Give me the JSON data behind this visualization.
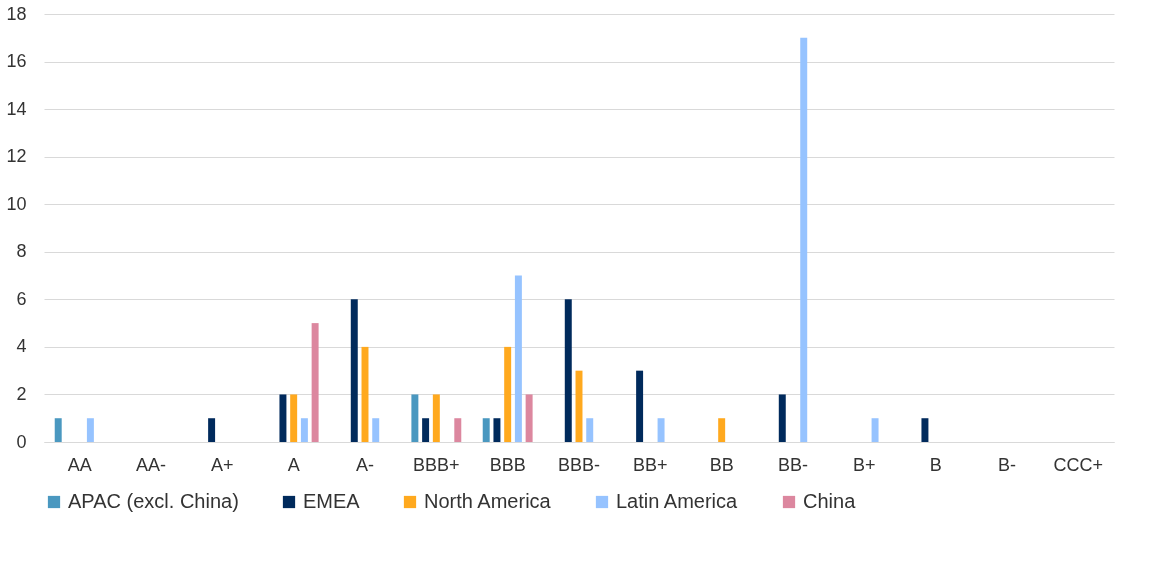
{
  "chart_data": {
    "type": "bar",
    "categories": [
      "AA",
      "AA-",
      "A+",
      "A",
      "A-",
      "BBB+",
      "BBB",
      "BBB-",
      "BB+",
      "BB",
      "BB-",
      "B+",
      "B",
      "B-",
      "CCC+"
    ],
    "series": [
      {
        "name": "APAC (excl. China)",
        "color": "#4a98c0",
        "values": [
          1,
          0,
          0,
          0,
          0,
          2,
          1,
          0,
          0,
          0,
          0,
          0,
          0,
          0,
          0
        ]
      },
      {
        "name": "EMEA",
        "color": "#002a5c",
        "values": [
          0,
          0,
          1,
          2,
          6,
          1,
          1,
          6,
          3,
          0,
          2,
          0,
          1,
          0,
          0
        ]
      },
      {
        "name": "North America",
        "color": "#ffa91e",
        "values": [
          0,
          0,
          0,
          2,
          4,
          2,
          4,
          3,
          0,
          1,
          0,
          0,
          0,
          0,
          0
        ]
      },
      {
        "name": "Latin America",
        "color": "#96c3ff",
        "values": [
          1,
          0,
          0,
          1,
          1,
          0,
          7,
          1,
          1,
          0,
          17,
          1,
          0,
          0,
          0
        ]
      },
      {
        "name": "China",
        "color": "#dc879f",
        "values": [
          0,
          0,
          0,
          5,
          0,
          1,
          2,
          0,
          0,
          0,
          0,
          0,
          0,
          0,
          0
        ]
      }
    ],
    "ylim": [
      0,
      18
    ],
    "yticks": [
      0,
      2,
      4,
      6,
      8,
      10,
      12,
      14,
      16,
      18
    ],
    "grid": "y",
    "legend": "bottom"
  }
}
